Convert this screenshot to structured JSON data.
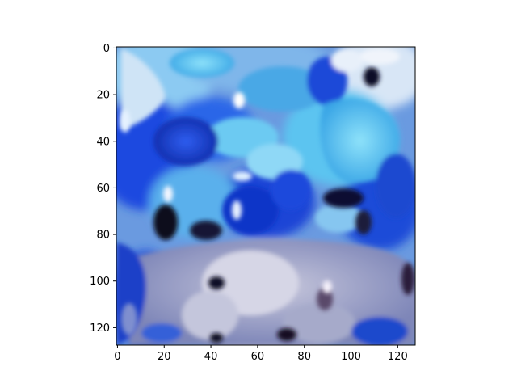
{
  "image": {
    "description_palette": {
      "deep_blue": "#1238c8",
      "sky_blue": "#58b8f0",
      "cyan": "#5fd2f2",
      "pale_blue_white": "#e6f0fb",
      "lavender_gray": "#a8a8c8",
      "navy_black": "#0a0a1e",
      "steel_blue": "#3a6ad8"
    }
  },
  "axes": {
    "x": {
      "ticks": [
        0,
        20,
        40,
        60,
        80,
        100,
        120
      ],
      "range": [
        -0.5,
        127.5
      ]
    },
    "y": {
      "ticks": [
        0,
        20,
        40,
        60,
        80,
        100,
        120
      ],
      "range": [
        -0.5,
        127.5
      ]
    }
  }
}
